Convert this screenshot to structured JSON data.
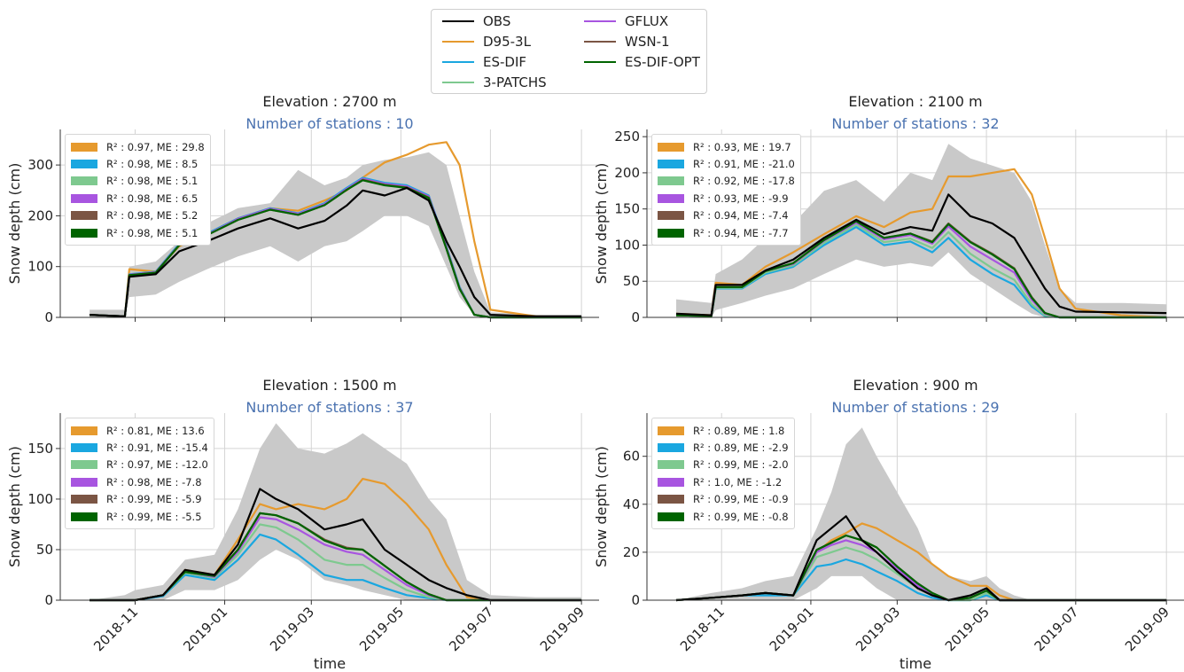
{
  "legend": {
    "items": [
      {
        "label": "OBS",
        "color": "#000000"
      },
      {
        "label": "D95-3L",
        "color": "#e69a2e"
      },
      {
        "label": "ES-DIF",
        "color": "#1aa7e0"
      },
      {
        "label": "3-PATCHS",
        "color": "#7ec98f"
      },
      {
        "label": "GFLUX",
        "color": "#a855e0"
      },
      {
        "label": "WSN-1",
        "color": "#7b5544"
      },
      {
        "label": "ES-DIF-OPT",
        "color": "#006400"
      }
    ]
  },
  "xlabel": "time",
  "ylabel": "Snow depth (cm)",
  "xticks": [
    "2018-11",
    "2019-01",
    "2019-03",
    "2019-05",
    "2019-07",
    "2019-09"
  ],
  "chart_data": [
    {
      "type": "line",
      "title": "Elevation : 2700 m",
      "subtitle": "Number of stations : 10",
      "ylim": [
        0,
        370
      ],
      "yticks": [
        0,
        100,
        200,
        300
      ],
      "metrics": [
        "R² : 0.97, ME : 29.8",
        "R² : 0.98, ME : 8.5",
        "R² : 0.98, ME : 5.1",
        "R² : 0.98, ME : 6.5",
        "R² : 0.98, ME : 5.2",
        "R² : 0.98, ME : 5.1"
      ],
      "x": [
        "2018-10-01",
        "2018-10-25",
        "2018-10-28",
        "2018-11-15",
        "2018-12-01",
        "2018-12-20",
        "2019-01-10",
        "2019-02-01",
        "2019-02-20",
        "2019-03-10",
        "2019-03-25",
        "2019-04-05",
        "2019-04-20",
        "2019-05-05",
        "2019-05-20",
        "2019-06-01",
        "2019-06-10",
        "2019-06-20",
        "2019-07-01",
        "2019-08-01",
        "2019-09-01"
      ],
      "band_low": [
        0,
        0,
        40,
        45,
        70,
        95,
        120,
        140,
        110,
        140,
        150,
        170,
        200,
        200,
        180,
        100,
        40,
        5,
        0,
        0,
        0
      ],
      "band_high": [
        15,
        15,
        100,
        110,
        150,
        185,
        215,
        225,
        290,
        260,
        275,
        300,
        310,
        315,
        325,
        300,
        200,
        90,
        10,
        5,
        5
      ],
      "series": [
        {
          "name": "OBS",
          "color": "#000000",
          "values": [
            5,
            2,
            80,
            85,
            130,
            150,
            175,
            195,
            175,
            190,
            220,
            250,
            240,
            255,
            230,
            150,
            100,
            40,
            5,
            2,
            2
          ]
        },
        {
          "name": "D95-3L",
          "color": "#e69a2e",
          "values": [
            5,
            2,
            95,
            90,
            140,
            165,
            195,
            215,
            210,
            230,
            250,
            275,
            305,
            320,
            340,
            345,
            300,
            150,
            15,
            2,
            0
          ]
        },
        {
          "name": "ES-DIF",
          "color": "#1aa7e0",
          "values": [
            5,
            2,
            85,
            90,
            145,
            165,
            195,
            215,
            205,
            225,
            255,
            275,
            265,
            260,
            240,
            140,
            60,
            5,
            0,
            0,
            0
          ]
        },
        {
          "name": "3-PATCHS",
          "color": "#7ec98f",
          "values": [
            5,
            2,
            84,
            89,
            143,
            163,
            193,
            213,
            203,
            222,
            252,
            272,
            262,
            257,
            237,
            137,
            58,
            5,
            0,
            0,
            0
          ]
        },
        {
          "name": "GFLUX",
          "color": "#a855e0",
          "values": [
            5,
            2,
            84,
            89,
            143,
            163,
            194,
            214,
            204,
            223,
            253,
            273,
            263,
            258,
            238,
            138,
            58,
            5,
            0,
            0,
            0
          ]
        },
        {
          "name": "WSN-1",
          "color": "#7b5544",
          "values": [
            5,
            2,
            83,
            88,
            142,
            162,
            192,
            212,
            202,
            221,
            251,
            271,
            261,
            256,
            236,
            136,
            57,
            5,
            0,
            0,
            0
          ]
        },
        {
          "name": "ES-DIF-OPT",
          "color": "#006400",
          "values": [
            5,
            2,
            83,
            88,
            142,
            162,
            192,
            212,
            202,
            221,
            251,
            270,
            260,
            255,
            235,
            135,
            56,
            5,
            0,
            0,
            0
          ]
        }
      ]
    },
    {
      "type": "line",
      "title": "Elevation : 2100 m",
      "subtitle": "Number of stations : 32",
      "ylim": [
        0,
        260
      ],
      "yticks": [
        0,
        50,
        100,
        150,
        200,
        250
      ],
      "metrics": [
        "R² : 0.93, ME : 19.7",
        "R² : 0.91, ME : -21.0",
        "R² : 0.92, ME : -17.8",
        "R² : 0.93, ME : -9.9",
        "R² : 0.94, ME : -7.4",
        "R² : 0.94, ME : -7.7"
      ],
      "x": [
        "2018-10-01",
        "2018-10-25",
        "2018-10-28",
        "2018-11-15",
        "2018-12-01",
        "2018-12-20",
        "2019-01-10",
        "2019-02-01",
        "2019-02-20",
        "2019-03-10",
        "2019-03-25",
        "2019-04-05",
        "2019-04-20",
        "2019-05-05",
        "2019-05-20",
        "2019-06-01",
        "2019-06-10",
        "2019-06-20",
        "2019-07-01",
        "2019-08-01",
        "2019-09-01"
      ],
      "band_low": [
        0,
        0,
        10,
        20,
        30,
        40,
        60,
        80,
        70,
        75,
        70,
        90,
        60,
        40,
        20,
        5,
        0,
        0,
        0,
        0,
        0
      ],
      "band_high": [
        25,
        20,
        60,
        80,
        110,
        130,
        175,
        190,
        160,
        200,
        190,
        240,
        220,
        210,
        200,
        160,
        100,
        40,
        20,
        20,
        18
      ],
      "series": [
        {
          "name": "OBS",
          "color": "#000000",
          "values": [
            5,
            3,
            45,
            45,
            65,
            80,
            110,
            135,
            115,
            125,
            120,
            170,
            140,
            130,
            110,
            70,
            40,
            15,
            8,
            7,
            6
          ]
        },
        {
          "name": "D95-3L",
          "color": "#e69a2e",
          "values": [
            5,
            3,
            48,
            45,
            70,
            90,
            115,
            140,
            125,
            145,
            150,
            195,
            195,
            200,
            205,
            170,
            110,
            40,
            12,
            3,
            0
          ]
        },
        {
          "name": "ES-DIF",
          "color": "#1aa7e0",
          "values": [
            3,
            2,
            40,
            40,
            60,
            70,
            100,
            125,
            100,
            105,
            90,
            110,
            80,
            60,
            45,
            15,
            2,
            0,
            0,
            0,
            0
          ]
        },
        {
          "name": "3-PATCHS",
          "color": "#7ec98f",
          "values": [
            3,
            2,
            41,
            41,
            62,
            72,
            103,
            128,
            104,
            109,
            96,
            118,
            88,
            68,
            52,
            18,
            3,
            0,
            0,
            0,
            0
          ]
        },
        {
          "name": "GFLUX",
          "color": "#a855e0",
          "values": [
            3,
            2,
            42,
            42,
            64,
            74,
            106,
            131,
            108,
            114,
            102,
            126,
            98,
            80,
            62,
            24,
            5,
            0,
            0,
            0,
            0
          ]
        },
        {
          "name": "WSN-1",
          "color": "#7b5544",
          "values": [
            3,
            2,
            42,
            42,
            64,
            75,
            107,
            133,
            110,
            116,
            105,
            130,
            105,
            88,
            68,
            28,
            6,
            0,
            0,
            0,
            0
          ]
        },
        {
          "name": "ES-DIF-OPT",
          "color": "#006400",
          "values": [
            3,
            2,
            42,
            42,
            64,
            75,
            107,
            133,
            110,
            116,
            104,
            129,
            104,
            87,
            67,
            27,
            6,
            0,
            0,
            0,
            0
          ]
        }
      ]
    },
    {
      "type": "line",
      "title": "Elevation : 1500 m",
      "subtitle": "Number of stations : 37",
      "ylim": [
        0,
        185
      ],
      "yticks": [
        0,
        50,
        100,
        150
      ],
      "metrics": [
        "R² : 0.81, ME : 13.6",
        "R² : 0.91, ME : -15.4",
        "R² : 0.97, ME : -12.0",
        "R² : 0.98, ME : -7.8",
        "R² : 0.99, ME : -5.9",
        "R² : 0.99, ME : -5.5"
      ],
      "x": [
        "2018-10-01",
        "2018-10-25",
        "2018-11-01",
        "2018-11-20",
        "2018-12-05",
        "2018-12-25",
        "2019-01-10",
        "2019-01-25",
        "2019-02-05",
        "2019-02-20",
        "2019-03-10",
        "2019-03-25",
        "2019-04-05",
        "2019-04-20",
        "2019-05-05",
        "2019-05-20",
        "2019-06-01",
        "2019-06-15",
        "2019-07-01",
        "2019-08-01",
        "2019-09-01"
      ],
      "band_low": [
        0,
        0,
        0,
        0,
        10,
        10,
        20,
        40,
        50,
        40,
        20,
        15,
        10,
        5,
        0,
        0,
        0,
        0,
        0,
        0,
        0
      ],
      "band_high": [
        0,
        5,
        10,
        15,
        40,
        45,
        90,
        150,
        175,
        150,
        145,
        155,
        165,
        150,
        135,
        100,
        80,
        20,
        5,
        3,
        3
      ],
      "series": [
        {
          "name": "OBS",
          "color": "#000000",
          "values": [
            0,
            0,
            0,
            5,
            30,
            25,
            55,
            110,
            100,
            90,
            70,
            75,
            80,
            50,
            35,
            20,
            12,
            5,
            0,
            0,
            0
          ]
        },
        {
          "name": "D95-3L",
          "color": "#e69a2e",
          "values": [
            0,
            0,
            0,
            5,
            30,
            25,
            60,
            95,
            90,
            95,
            90,
            100,
            120,
            115,
            95,
            70,
            35,
            3,
            0,
            0,
            0
          ]
        },
        {
          "name": "ES-DIF",
          "color": "#1aa7e0",
          "values": [
            0,
            0,
            0,
            4,
            25,
            20,
            40,
            65,
            60,
            45,
            25,
            20,
            20,
            12,
            5,
            2,
            0,
            0,
            0,
            0,
            0
          ]
        },
        {
          "name": "3-PATCHS",
          "color": "#7ec98f",
          "values": [
            0,
            0,
            0,
            5,
            27,
            22,
            45,
            75,
            72,
            60,
            40,
            35,
            35,
            22,
            10,
            3,
            0,
            0,
            0,
            0,
            0
          ]
        },
        {
          "name": "GFLUX",
          "color": "#a855e0",
          "values": [
            0,
            0,
            0,
            5,
            28,
            23,
            48,
            82,
            80,
            70,
            55,
            48,
            45,
            30,
            15,
            5,
            0,
            0,
            0,
            0,
            0
          ]
        },
        {
          "name": "WSN-1",
          "color": "#7b5544",
          "values": [
            0,
            0,
            0,
            5,
            28,
            24,
            50,
            86,
            84,
            76,
            60,
            52,
            50,
            34,
            18,
            6,
            0,
            0,
            0,
            0,
            0
          ]
        },
        {
          "name": "ES-DIF-OPT",
          "color": "#006400",
          "values": [
            0,
            0,
            0,
            5,
            28,
            24,
            50,
            86,
            84,
            76,
            59,
            51,
            50,
            34,
            18,
            6,
            0,
            0,
            0,
            0,
            0
          ]
        }
      ]
    },
    {
      "type": "line",
      "title": "Elevation : 900 m",
      "subtitle": "Number of stations : 29",
      "ylim": [
        0,
        78
      ],
      "yticks": [
        0,
        20,
        40,
        60
      ],
      "metrics": [
        "R² : 0.89, ME : 1.8",
        "R² : 0.89, ME : -2.9",
        "R² : 0.99, ME : -2.0",
        "R² : 1.0, ME : -1.2",
        "R² : 0.99, ME : -0.9",
        "R² : 0.99, ME : -0.8"
      ],
      "x": [
        "2018-10-01",
        "2018-10-25",
        "2018-11-15",
        "2018-12-01",
        "2018-12-20",
        "2019-01-05",
        "2019-01-15",
        "2019-01-25",
        "2019-02-05",
        "2019-02-15",
        "2019-03-01",
        "2019-03-15",
        "2019-03-25",
        "2019-04-05",
        "2019-04-20",
        "2019-05-01",
        "2019-05-10",
        "2019-05-20",
        "2019-06-01",
        "2019-07-01",
        "2019-09-01"
      ],
      "band_low": [
        0,
        0,
        0,
        0,
        0,
        5,
        10,
        10,
        10,
        5,
        0,
        0,
        0,
        0,
        0,
        0,
        0,
        0,
        0,
        0,
        0
      ],
      "band_high": [
        0,
        3,
        5,
        8,
        10,
        30,
        45,
        65,
        72,
        60,
        45,
        30,
        15,
        10,
        8,
        10,
        5,
        2,
        0,
        0,
        0
      ],
      "series": [
        {
          "name": "OBS",
          "color": "#000000",
          "values": [
            0,
            1,
            2,
            3,
            2,
            25,
            30,
            35,
            25,
            20,
            12,
            5,
            2,
            0,
            2,
            5,
            0,
            0,
            0,
            0,
            0
          ]
        },
        {
          "name": "D95-3L",
          "color": "#e69a2e",
          "values": [
            0,
            1,
            2,
            3,
            2,
            20,
            25,
            28,
            32,
            30,
            25,
            20,
            15,
            10,
            6,
            6,
            2,
            0,
            0,
            0,
            0
          ]
        },
        {
          "name": "ES-DIF",
          "color": "#1aa7e0",
          "values": [
            0,
            1,
            2,
            2,
            2,
            14,
            15,
            17,
            15,
            12,
            8,
            3,
            1,
            0,
            0,
            2,
            0,
            0,
            0,
            0,
            0
          ]
        },
        {
          "name": "3-PATCHS",
          "color": "#7ec98f",
          "values": [
            0,
            1,
            2,
            3,
            2,
            18,
            20,
            22,
            20,
            17,
            11,
            5,
            2,
            0,
            0,
            3,
            0,
            0,
            0,
            0,
            0
          ]
        },
        {
          "name": "GFLUX",
          "color": "#a855e0",
          "values": [
            0,
            1,
            2,
            3,
            2,
            20,
            23,
            25,
            23,
            20,
            13,
            6,
            2,
            0,
            1,
            4,
            0,
            0,
            0,
            0,
            0
          ]
        },
        {
          "name": "WSN-1",
          "color": "#7b5544",
          "values": [
            0,
            1,
            2,
            3,
            2,
            21,
            24,
            27,
            25,
            22,
            14,
            7,
            3,
            0,
            1,
            4,
            0,
            0,
            0,
            0,
            0
          ]
        },
        {
          "name": "ES-DIF-OPT",
          "color": "#006400",
          "values": [
            0,
            1,
            2,
            3,
            2,
            21,
            24,
            27,
            25,
            22,
            14,
            7,
            3,
            0,
            1,
            4,
            0,
            0,
            0,
            0,
            0
          ]
        }
      ]
    }
  ]
}
